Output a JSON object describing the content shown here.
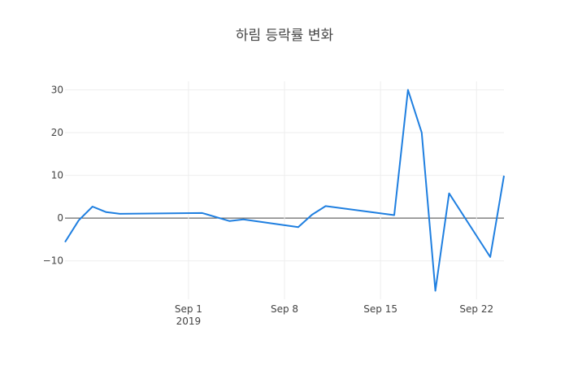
{
  "chart_data": {
    "type": "line",
    "title": "하림 등락률 변화",
    "xlabel": "",
    "ylabel": "",
    "x_axis_type": "date",
    "x_range": [
      "2019-08-23",
      "2019-09-24"
    ],
    "ylim": [
      -19,
      32
    ],
    "y_ticks": [
      -10,
      0,
      10,
      20,
      30
    ],
    "y_tick_labels": [
      "−10",
      "0",
      "10",
      "20",
      "30"
    ],
    "x_ticks": [
      "2019-09-01",
      "2019-09-08",
      "2019-09-15",
      "2019-09-22"
    ],
    "x_tick_labels": [
      "Sep 1",
      "Sep 8",
      "Sep 15",
      "Sep 22"
    ],
    "x_tick_sublabel": "2019",
    "zero_line": true,
    "grid": true,
    "line_color": "#1f7fe0",
    "series": [
      {
        "x": [
          "2019-08-23",
          "2019-08-24",
          "2019-08-25",
          "2019-08-26",
          "2019-08-27",
          "2019-09-02",
          "2019-09-04",
          "2019-09-05",
          "2019-09-09",
          "2019-09-10",
          "2019-09-11",
          "2019-09-16",
          "2019-09-17",
          "2019-09-18",
          "2019-09-19",
          "2019-09-20",
          "2019-09-23",
          "2019-09-24"
        ],
        "y": [
          -5.6,
          -0.5,
          2.7,
          1.4,
          1.0,
          1.2,
          -0.7,
          -0.3,
          -2.1,
          0.8,
          2.8,
          0.7,
          30.0,
          20.0,
          -17.0,
          5.8,
          -9.1,
          9.9
        ]
      }
    ]
  }
}
